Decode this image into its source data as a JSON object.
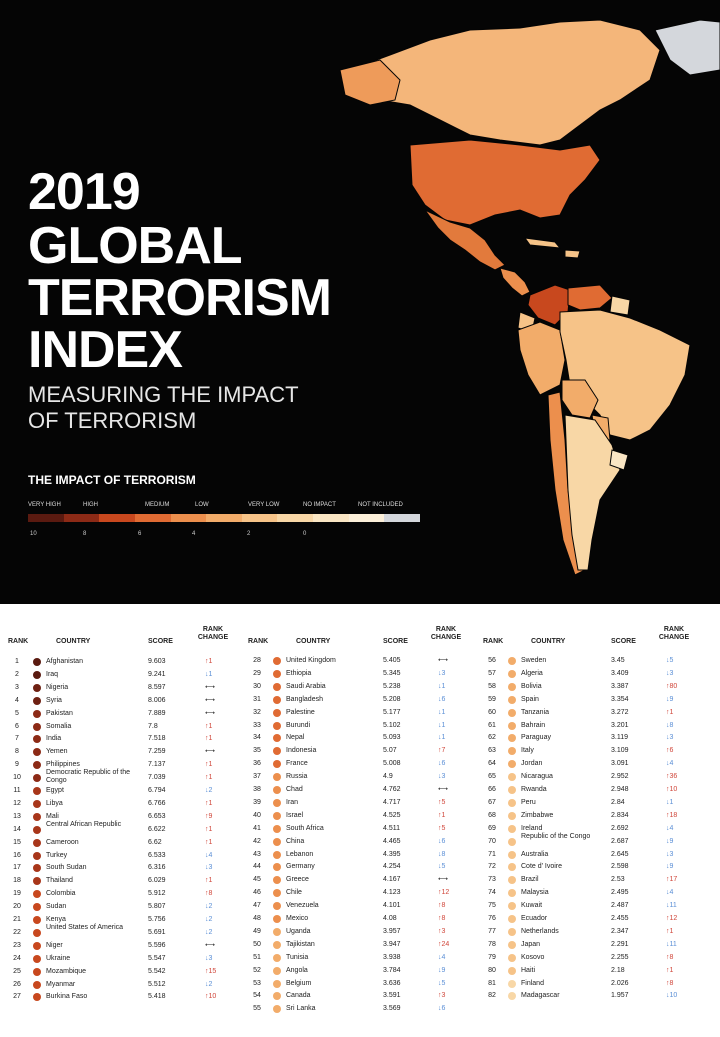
{
  "header": {
    "title_lines": [
      "2019",
      "GLOBAL",
      "TERRORISM",
      "INDEX"
    ],
    "subtitle_lines": [
      "MEASURING THE IMPACT",
      "OF TERRORISM"
    ]
  },
  "legend": {
    "title": "THE IMPACT OF TERRORISM",
    "labels": [
      "VERY HIGH",
      "HIGH",
      "MEDIUM",
      "LOW",
      "VERY LOW",
      "NO IMPACT",
      "NOT INCLUDED"
    ],
    "ticks": [
      "10",
      "8",
      "6",
      "4",
      "2",
      "0"
    ],
    "colors": [
      "#5a1a10",
      "#8c2a16",
      "#c8481e",
      "#e06b33",
      "#ec8f4d",
      "#f2ac6a",
      "#f6c388",
      "#f8d7a6",
      "#fae6c4",
      "#fcefd9",
      "#d4d7dc"
    ]
  },
  "table_headers": {
    "rank": "RANK",
    "country": "COUNTRY",
    "score": "SCORE",
    "rank_change_1": "RANK",
    "rank_change_2": "CHANGE"
  },
  "chart_data": {
    "type": "table",
    "columns": [
      "RANK",
      "COUNTRY",
      "SCORE",
      "RANK CHANGE"
    ],
    "rows": [
      {
        "rank": "1",
        "country": "Afghanistan",
        "score": "9.603",
        "change": "↑1",
        "dir": "up",
        "color": "#5a1a10"
      },
      {
        "rank": "2",
        "country": "Iraq",
        "score": "9.241",
        "change": "↓1",
        "dir": "down",
        "color": "#5a1a10"
      },
      {
        "rank": "3",
        "country": "Nigeria",
        "score": "8.597",
        "change": "⟷",
        "dir": "same",
        "color": "#6e2012"
      },
      {
        "rank": "4",
        "country": "Syria",
        "score": "8.006",
        "change": "⟷",
        "dir": "same",
        "color": "#6e2012"
      },
      {
        "rank": "5",
        "country": "Pakistan",
        "score": "7.889",
        "change": "⟷",
        "dir": "same",
        "color": "#8c2a16"
      },
      {
        "rank": "6",
        "country": "Somalia",
        "score": "7.8",
        "change": "↑1",
        "dir": "up",
        "color": "#8c2a16"
      },
      {
        "rank": "7",
        "country": "India",
        "score": "7.518",
        "change": "↑1",
        "dir": "up",
        "color": "#8c2a16"
      },
      {
        "rank": "8",
        "country": "Yemen",
        "score": "7.259",
        "change": "⟷",
        "dir": "same",
        "color": "#8c2a16"
      },
      {
        "rank": "9",
        "country": "Philippines",
        "score": "7.137",
        "change": "↑1",
        "dir": "up",
        "color": "#8c2a16"
      },
      {
        "rank": "10",
        "country": "Democratic Republic of the Congo",
        "score": "7.039",
        "change": "↑1",
        "dir": "up",
        "color": "#8c2a16"
      },
      {
        "rank": "11",
        "country": "Egypt",
        "score": "6.794",
        "change": "↓2",
        "dir": "down",
        "color": "#a8361a"
      },
      {
        "rank": "12",
        "country": "Libya",
        "score": "6.766",
        "change": "↑1",
        "dir": "up",
        "color": "#a8361a"
      },
      {
        "rank": "13",
        "country": "Mali",
        "score": "6.653",
        "change": "↑9",
        "dir": "up",
        "color": "#a8361a"
      },
      {
        "rank": "14",
        "country": "Central African Republic",
        "score": "6.622",
        "change": "↑1",
        "dir": "up",
        "color": "#a8361a"
      },
      {
        "rank": "15",
        "country": "Cameroon",
        "score": "6.62",
        "change": "↑1",
        "dir": "up",
        "color": "#a8361a"
      },
      {
        "rank": "16",
        "country": "Turkey",
        "score": "6.533",
        "change": "↓4",
        "dir": "down",
        "color": "#a8361a"
      },
      {
        "rank": "17",
        "country": "South Sudan",
        "score": "6.316",
        "change": "↓3",
        "dir": "down",
        "color": "#a8361a"
      },
      {
        "rank": "18",
        "country": "Thailand",
        "score": "6.029",
        "change": "↑1",
        "dir": "up",
        "color": "#a8361a"
      },
      {
        "rank": "19",
        "country": "Colombia",
        "score": "5.912",
        "change": "↑8",
        "dir": "up",
        "color": "#c8481e"
      },
      {
        "rank": "20",
        "country": "Sudan",
        "score": "5.807",
        "change": "↓2",
        "dir": "down",
        "color": "#c8481e"
      },
      {
        "rank": "21",
        "country": "Kenya",
        "score": "5.756",
        "change": "↓2",
        "dir": "down",
        "color": "#c8481e"
      },
      {
        "rank": "22",
        "country": "United States of America",
        "score": "5.691",
        "change": "↓2",
        "dir": "down",
        "color": "#c8481e"
      },
      {
        "rank": "23",
        "country": "Niger",
        "score": "5.596",
        "change": "⟷",
        "dir": "same",
        "color": "#c8481e"
      },
      {
        "rank": "24",
        "country": "Ukraine",
        "score": "5.547",
        "change": "↓3",
        "dir": "down",
        "color": "#c8481e"
      },
      {
        "rank": "25",
        "country": "Mozambique",
        "score": "5.542",
        "change": "↑15",
        "dir": "up",
        "color": "#c8481e"
      },
      {
        "rank": "26",
        "country": "Myanmar",
        "score": "5.512",
        "change": "↓2",
        "dir": "down",
        "color": "#c8481e"
      },
      {
        "rank": "27",
        "country": "Burkina Faso",
        "score": "5.418",
        "change": "↑10",
        "dir": "up",
        "color": "#c8481e"
      },
      {
        "rank": "28",
        "country": "United Kingdom",
        "score": "5.405",
        "change": "⟷",
        "dir": "same",
        "color": "#e06b33"
      },
      {
        "rank": "29",
        "country": "Ethiopia",
        "score": "5.345",
        "change": "↓3",
        "dir": "down",
        "color": "#e06b33"
      },
      {
        "rank": "30",
        "country": "Saudi Arabia",
        "score": "5.238",
        "change": "↓1",
        "dir": "down",
        "color": "#e06b33"
      },
      {
        "rank": "31",
        "country": "Bangladesh",
        "score": "5.208",
        "change": "↓6",
        "dir": "down",
        "color": "#e06b33"
      },
      {
        "rank": "32",
        "country": "Palestine",
        "score": "5.177",
        "change": "↓1",
        "dir": "down",
        "color": "#e06b33"
      },
      {
        "rank": "33",
        "country": "Burundi",
        "score": "5.102",
        "change": "↓1",
        "dir": "down",
        "color": "#e06b33"
      },
      {
        "rank": "34",
        "country": "Nepal",
        "score": "5.093",
        "change": "↓1",
        "dir": "down",
        "color": "#e06b33"
      },
      {
        "rank": "35",
        "country": "Indonesia",
        "score": "5.07",
        "change": "↑7",
        "dir": "up",
        "color": "#e06b33"
      },
      {
        "rank": "36",
        "country": "France",
        "score": "5.008",
        "change": "↓6",
        "dir": "down",
        "color": "#e06b33"
      },
      {
        "rank": "37",
        "country": "Russia",
        "score": "4.9",
        "change": "↓3",
        "dir": "down",
        "color": "#ec8f4d"
      },
      {
        "rank": "38",
        "country": "Chad",
        "score": "4.762",
        "change": "⟷",
        "dir": "same",
        "color": "#ec8f4d"
      },
      {
        "rank": "39",
        "country": "Iran",
        "score": "4.717",
        "change": "↑5",
        "dir": "up",
        "color": "#ec8f4d"
      },
      {
        "rank": "40",
        "country": "Israel",
        "score": "4.525",
        "change": "↑1",
        "dir": "up",
        "color": "#ec8f4d"
      },
      {
        "rank": "41",
        "country": "South Africa",
        "score": "4.511",
        "change": "↑5",
        "dir": "up",
        "color": "#ec8f4d"
      },
      {
        "rank": "42",
        "country": "China",
        "score": "4.465",
        "change": "↓6",
        "dir": "down",
        "color": "#ec8f4d"
      },
      {
        "rank": "43",
        "country": "Lebanon",
        "score": "4.395",
        "change": "↓8",
        "dir": "down",
        "color": "#ec8f4d"
      },
      {
        "rank": "44",
        "country": "Germany",
        "score": "4.254",
        "change": "↓5",
        "dir": "down",
        "color": "#ec8f4d"
      },
      {
        "rank": "45",
        "country": "Greece",
        "score": "4.167",
        "change": "⟷",
        "dir": "same",
        "color": "#ec8f4d"
      },
      {
        "rank": "46",
        "country": "Chile",
        "score": "4.123",
        "change": "↑12",
        "dir": "up",
        "color": "#ec8f4d"
      },
      {
        "rank": "47",
        "country": "Venezuela",
        "score": "4.101",
        "change": "↑8",
        "dir": "up",
        "color": "#ec8f4d"
      },
      {
        "rank": "48",
        "country": "Mexico",
        "score": "4.08",
        "change": "↑8",
        "dir": "up",
        "color": "#ec8f4d"
      },
      {
        "rank": "49",
        "country": "Uganda",
        "score": "3.957",
        "change": "↑3",
        "dir": "up",
        "color": "#f2ac6a"
      },
      {
        "rank": "50",
        "country": "Tajikistan",
        "score": "3.947",
        "change": "↑24",
        "dir": "up",
        "color": "#f2ac6a"
      },
      {
        "rank": "51",
        "country": "Tunisia",
        "score": "3.938",
        "change": "↓4",
        "dir": "down",
        "color": "#f2ac6a"
      },
      {
        "rank": "52",
        "country": "Angola",
        "score": "3.784",
        "change": "↓9",
        "dir": "down",
        "color": "#f2ac6a"
      },
      {
        "rank": "53",
        "country": "Belgium",
        "score": "3.636",
        "change": "↓5",
        "dir": "down",
        "color": "#f2ac6a"
      },
      {
        "rank": "54",
        "country": "Canada",
        "score": "3.591",
        "change": "↑3",
        "dir": "up",
        "color": "#f2ac6a"
      },
      {
        "rank": "55",
        "country": "Sri Lanka",
        "score": "3.569",
        "change": "↓6",
        "dir": "down",
        "color": "#f2ac6a"
      },
      {
        "rank": "56",
        "country": "Sweden",
        "score": "3.45",
        "change": "↓5",
        "dir": "down",
        "color": "#f2ac6a"
      },
      {
        "rank": "57",
        "country": "Algeria",
        "score": "3.409",
        "change": "↓3",
        "dir": "down",
        "color": "#f2ac6a"
      },
      {
        "rank": "58",
        "country": "Bolivia",
        "score": "3.387",
        "change": "↑80",
        "dir": "up",
        "color": "#f2ac6a"
      },
      {
        "rank": "59",
        "country": "Spain",
        "score": "3.354",
        "change": "↓9",
        "dir": "down",
        "color": "#f2ac6a"
      },
      {
        "rank": "60",
        "country": "Tanzania",
        "score": "3.272",
        "change": "↑1",
        "dir": "up",
        "color": "#f2ac6a"
      },
      {
        "rank": "61",
        "country": "Bahrain",
        "score": "3.201",
        "change": "↓8",
        "dir": "down",
        "color": "#f2ac6a"
      },
      {
        "rank": "62",
        "country": "Paraguay",
        "score": "3.119",
        "change": "↓3",
        "dir": "down",
        "color": "#f2ac6a"
      },
      {
        "rank": "63",
        "country": "Italy",
        "score": "3.109",
        "change": "↑6",
        "dir": "up",
        "color": "#f2ac6a"
      },
      {
        "rank": "64",
        "country": "Jordan",
        "score": "3.091",
        "change": "↓4",
        "dir": "down",
        "color": "#f2ac6a"
      },
      {
        "rank": "65",
        "country": "Nicaragua",
        "score": "2.952",
        "change": "↑36",
        "dir": "up",
        "color": "#f6c388"
      },
      {
        "rank": "66",
        "country": "Rwanda",
        "score": "2.948",
        "change": "↑10",
        "dir": "up",
        "color": "#f6c388"
      },
      {
        "rank": "67",
        "country": "Peru",
        "score": "2.84",
        "change": "↓1",
        "dir": "down",
        "color": "#f6c388"
      },
      {
        "rank": "68",
        "country": "Zimbabwe",
        "score": "2.834",
        "change": "↑18",
        "dir": "up",
        "color": "#f6c388"
      },
      {
        "rank": "69",
        "country": "Ireland",
        "score": "2.692",
        "change": "↓4",
        "dir": "down",
        "color": "#f6c388"
      },
      {
        "rank": "70",
        "country": "Republic of the Congo",
        "score": "2.687",
        "change": "↓9",
        "dir": "down",
        "color": "#f6c388"
      },
      {
        "rank": "71",
        "country": "Australia",
        "score": "2.645",
        "change": "↓3",
        "dir": "down",
        "color": "#f6c388"
      },
      {
        "rank": "72",
        "country": "Cote d' Ivoire",
        "score": "2.598",
        "change": "↓9",
        "dir": "down",
        "color": "#f6c388"
      },
      {
        "rank": "73",
        "country": "Brazil",
        "score": "2.53",
        "change": "↑17",
        "dir": "up",
        "color": "#f6c388"
      },
      {
        "rank": "74",
        "country": "Malaysia",
        "score": "2.495",
        "change": "↓4",
        "dir": "down",
        "color": "#f6c388"
      },
      {
        "rank": "75",
        "country": "Kuwait",
        "score": "2.487",
        "change": "↓11",
        "dir": "down",
        "color": "#f6c388"
      },
      {
        "rank": "76",
        "country": "Ecuador",
        "score": "2.455",
        "change": "↑12",
        "dir": "up",
        "color": "#f6c388"
      },
      {
        "rank": "77",
        "country": "Netherlands",
        "score": "2.347",
        "change": "↑1",
        "dir": "up",
        "color": "#f6c388"
      },
      {
        "rank": "78",
        "country": "Japan",
        "score": "2.291",
        "change": "↓11",
        "dir": "down",
        "color": "#f6c388"
      },
      {
        "rank": "79",
        "country": "Kosovo",
        "score": "2.255",
        "change": "↑8",
        "dir": "up",
        "color": "#f6c388"
      },
      {
        "rank": "80",
        "country": "Haiti",
        "score": "2.18",
        "change": "↑1",
        "dir": "up",
        "color": "#f6c388"
      },
      {
        "rank": "81",
        "country": "Finland",
        "score": "2.026",
        "change": "↑8",
        "dir": "up",
        "color": "#f8d7a6"
      },
      {
        "rank": "82",
        "country": "Madagascar",
        "score": "1.957",
        "change": "↓10",
        "dir": "down",
        "color": "#f8d7a6"
      }
    ]
  }
}
